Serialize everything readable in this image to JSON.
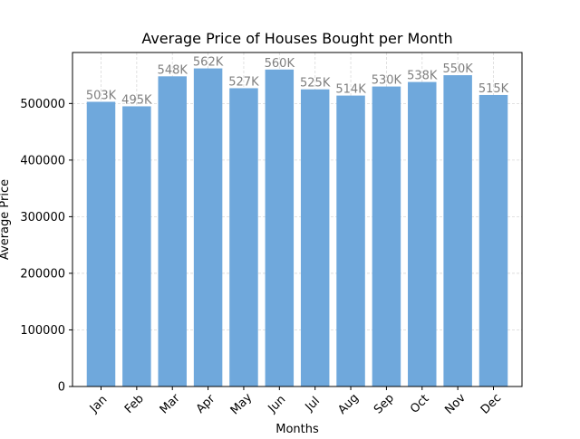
{
  "chart_data": {
    "type": "bar",
    "title": "Average Price of Houses Bought per Month",
    "xlabel": "Months",
    "ylabel": "Average Price",
    "categories": [
      "Jan",
      "Feb",
      "Mar",
      "Apr",
      "May",
      "Jun",
      "Jul",
      "Aug",
      "Sep",
      "Oct",
      "Nov",
      "Dec"
    ],
    "values": [
      503000,
      495000,
      548000,
      562000,
      527000,
      560000,
      525000,
      514000,
      530000,
      538000,
      550000,
      515000
    ],
    "data_labels": [
      "503K",
      "495K",
      "548K",
      "562K",
      "527K",
      "560K",
      "525K",
      "514K",
      "530K",
      "538K",
      "550K",
      "515K"
    ],
    "y_ticks": [
      0,
      100000,
      200000,
      300000,
      400000,
      500000
    ],
    "y_tick_labels": [
      "0",
      "100000",
      "200000",
      "300000",
      "400000",
      "500000"
    ],
    "ylim": [
      0,
      590100
    ],
    "grid": true,
    "x_tick_rotation_deg": 45,
    "colors": {
      "bar": "#6fa8dc",
      "data_label": "#808080",
      "grid": "#d9d9d9",
      "axis": "#000000"
    }
  }
}
